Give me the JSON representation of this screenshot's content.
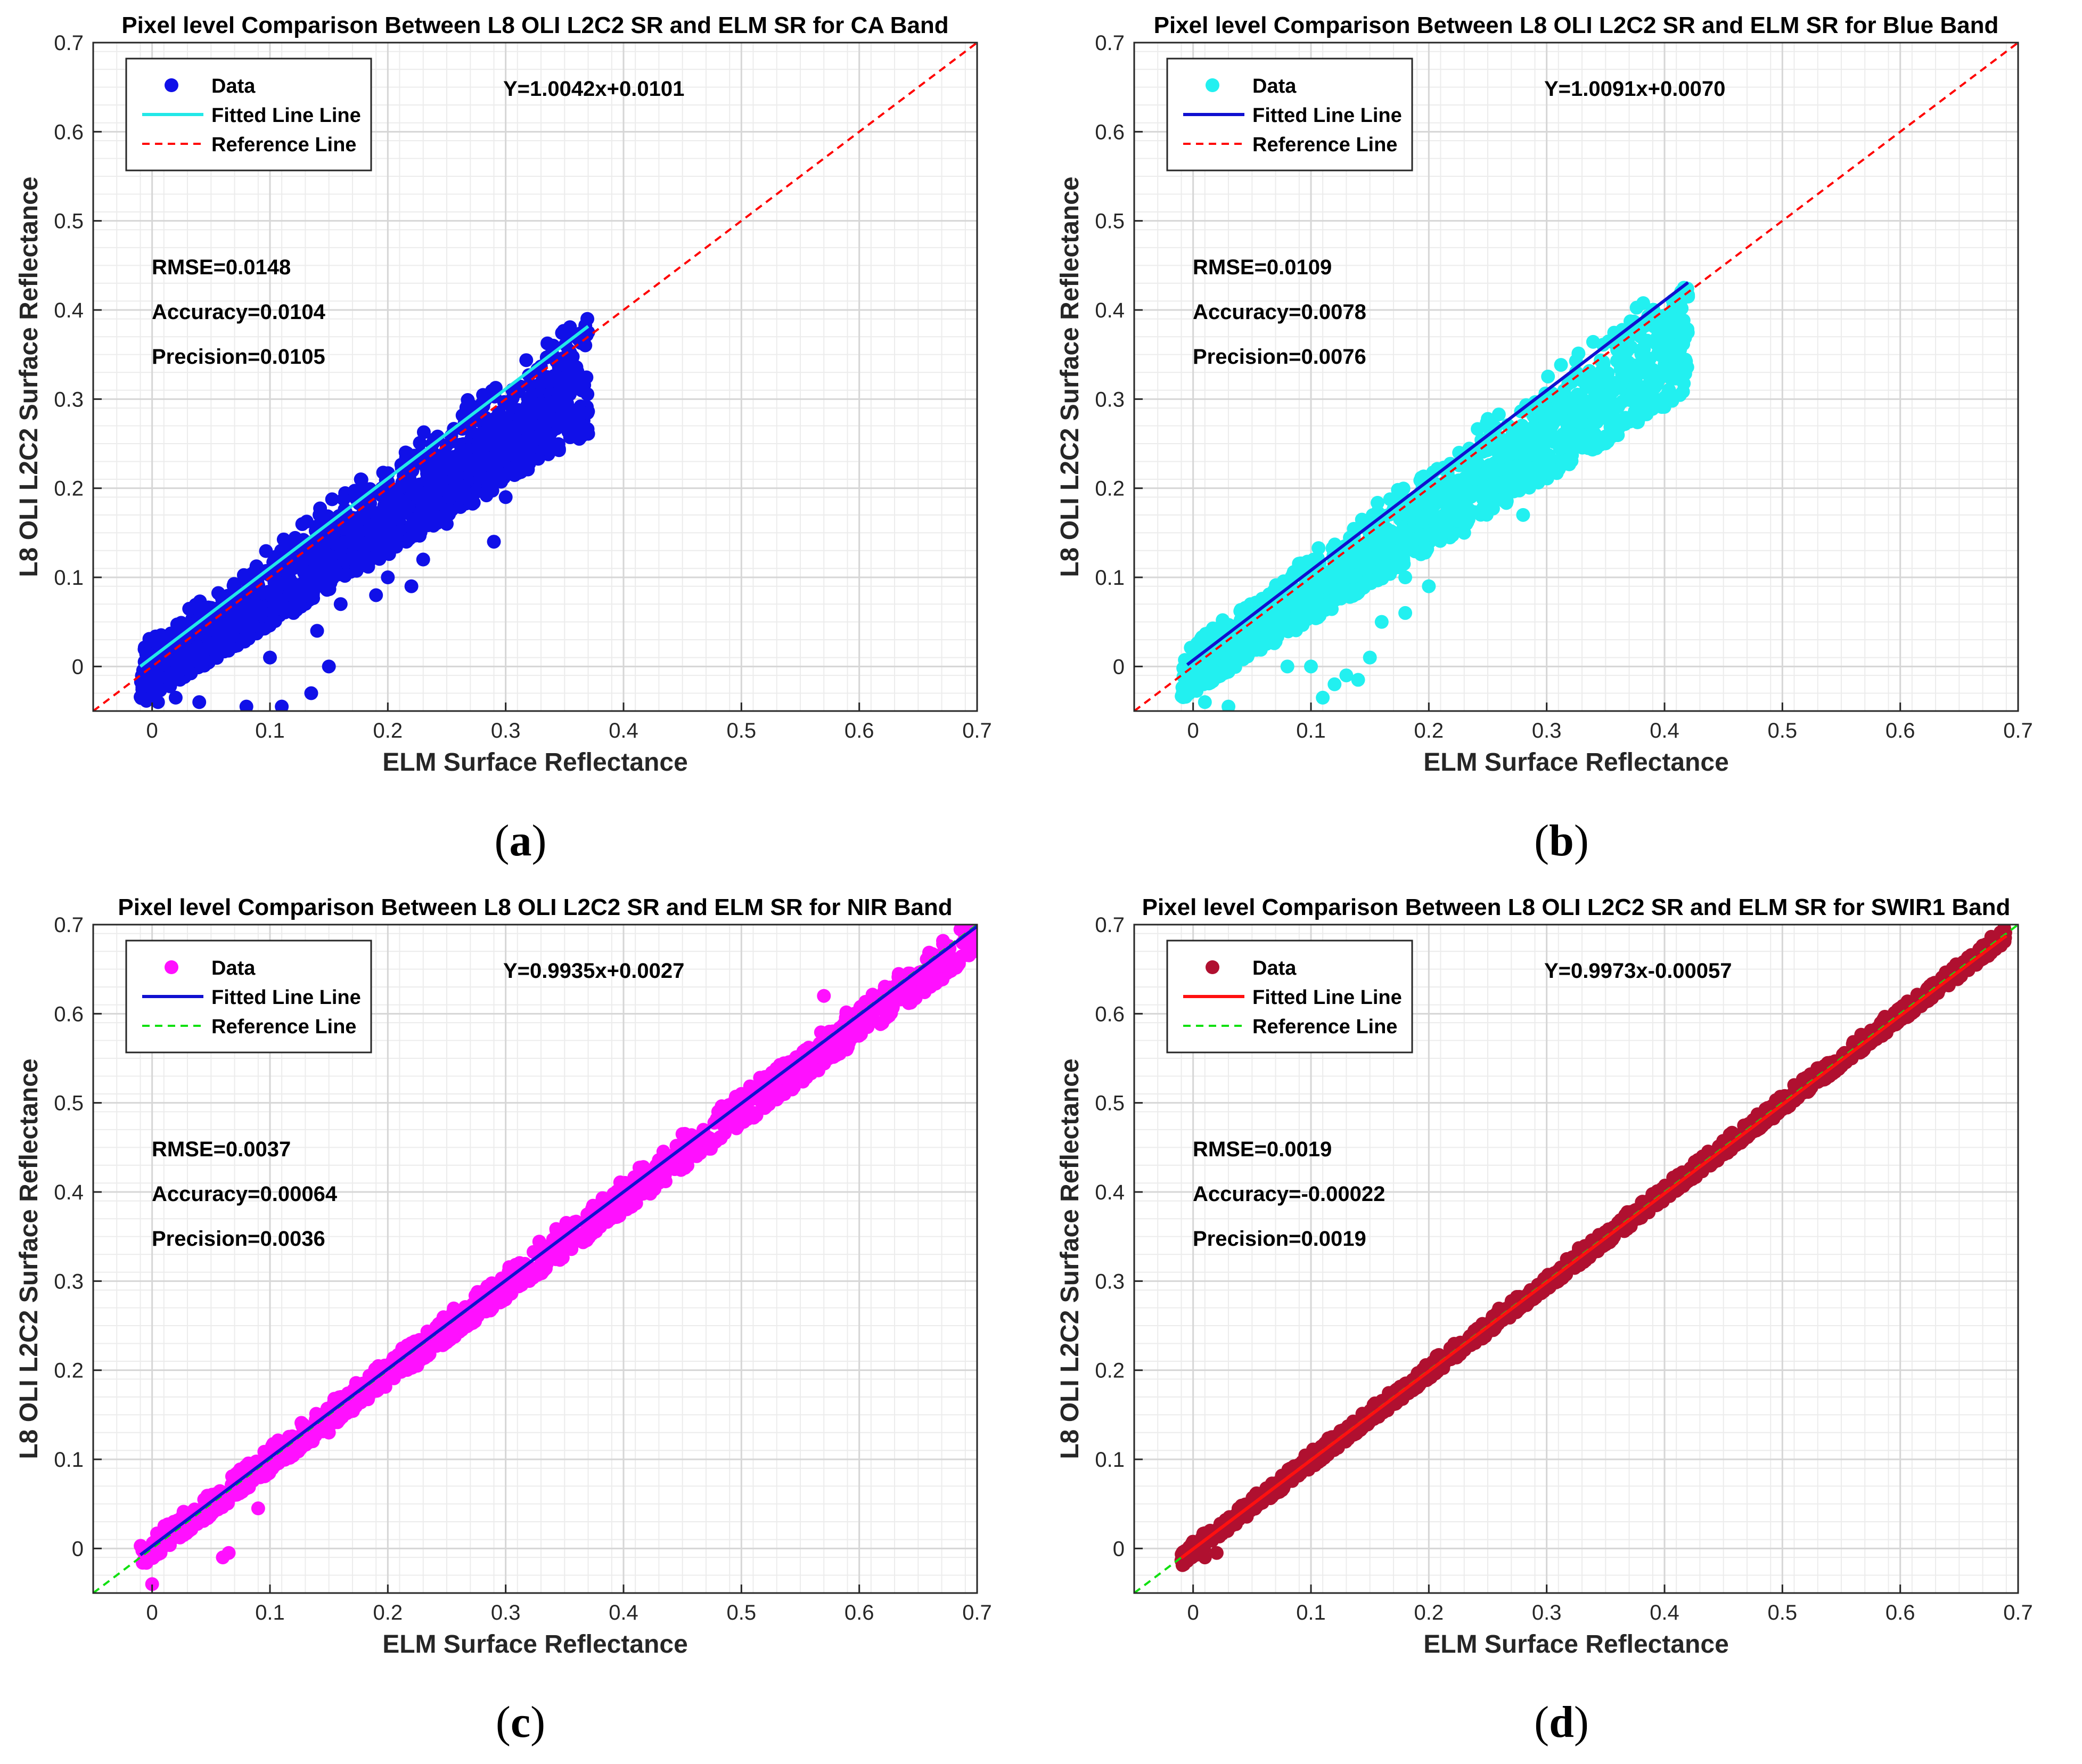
{
  "figure": {
    "panels": [
      {
        "letter": "a"
      },
      {
        "letter": "b"
      },
      {
        "letter": "c"
      },
      {
        "letter": "d"
      }
    ]
  },
  "chart_data": [
    {
      "type": "scatter",
      "title": "Pixel level Comparison Between L8 OLI L2C2 SR and ELM SR for CA Band",
      "xlabel": "ELM Surface Reflectance",
      "ylabel": "L8 OLI L2C2 Surface Reflectance",
      "xlim": [
        -0.05,
        0.7
      ],
      "ylim": [
        -0.05,
        0.7
      ],
      "xticks": [
        "0",
        "0.1",
        "0.2",
        "0.3",
        "0.4",
        "0.5",
        "0.6",
        "0.7"
      ],
      "yticks": [
        "0",
        "0.1",
        "0.2",
        "0.3",
        "0.4",
        "0.5",
        "0.6",
        "0.7"
      ],
      "grid": true,
      "legend_position": "top-left",
      "equation": "Y=1.0042x+0.0101",
      "stats": [
        "RMSE=0.0148",
        "Accuracy=0.0104",
        "Precision=0.0105"
      ],
      "series": [
        {
          "name": "Data",
          "kind": "points",
          "color": "#1010e8",
          "band": {
            "x_min": -0.01,
            "x_max": 0.37,
            "upper_offset": 0.035,
            "lower_slope": 0.8,
            "lower_offset": -0.035
          },
          "outliers": [
            [
              0.005,
              -0.04
            ],
            [
              0.02,
              -0.035
            ],
            [
              0.04,
              -0.04
            ],
            [
              0.08,
              -0.045
            ],
            [
              0.1,
              0.01
            ],
            [
              0.11,
              -0.045
            ],
            [
              0.135,
              -0.03
            ],
            [
              0.15,
              0.0
            ],
            [
              0.14,
              0.04
            ],
            [
              0.12,
              0.06
            ],
            [
              0.16,
              0.07
            ],
            [
              0.19,
              0.08
            ],
            [
              0.2,
              0.1
            ],
            [
              0.23,
              0.12
            ],
            [
              0.27,
              0.22
            ],
            [
              0.29,
              0.25
            ],
            [
              0.33,
              0.295
            ],
            [
              0.36,
              0.37
            ],
            [
              0.37,
              0.375
            ],
            [
              0.29,
              0.14
            ],
            [
              0.25,
              0.16
            ],
            [
              0.3,
              0.19
            ],
            [
              0.22,
              0.09
            ]
          ]
        },
        {
          "name": "Fitted Line Line",
          "kind": "line",
          "color": "#22e8e8",
          "slope": 1.0042,
          "intercept": 0.0101,
          "x_range": [
            -0.01,
            0.37
          ]
        },
        {
          "name": "Reference Line",
          "kind": "dashed",
          "color": "#ff0000",
          "slope": 1,
          "intercept": 0,
          "x_range": [
            -0.05,
            0.7
          ]
        }
      ]
    },
    {
      "type": "scatter",
      "title": "Pixel level Comparison Between L8 OLI L2C2 SR and ELM SR for Blue Band",
      "xlabel": "ELM Surface Reflectance",
      "ylabel": "L8 OLI L2C2 Surface Reflectance",
      "xlim": [
        -0.05,
        0.7
      ],
      "ylim": [
        -0.05,
        0.7
      ],
      "xticks": [
        "0",
        "0.1",
        "0.2",
        "0.3",
        "0.4",
        "0.5",
        "0.6",
        "0.7"
      ],
      "yticks": [
        "0",
        "0.1",
        "0.2",
        "0.3",
        "0.4",
        "0.5",
        "0.6",
        "0.7"
      ],
      "grid": true,
      "legend_position": "top-left",
      "equation": "Y=1.0091x+0.0070",
      "stats": [
        "RMSE=0.0109",
        "Accuracy=0.0078",
        "Precision=0.0076"
      ],
      "series": [
        {
          "name": "Data",
          "kind": "points",
          "color": "#22f0f0",
          "band": {
            "x_min": -0.01,
            "x_max": 0.42,
            "upper_offset": 0.03,
            "lower_slope": 0.8,
            "lower_offset": -0.03
          },
          "outliers": [
            [
              0.01,
              -0.04
            ],
            [
              0.03,
              -0.045
            ],
            [
              0.08,
              0.0
            ],
            [
              0.1,
              0.0
            ],
            [
              0.11,
              -0.035
            ],
            [
              0.12,
              -0.02
            ],
            [
              0.13,
              -0.01
            ],
            [
              0.14,
              -0.015
            ],
            [
              0.15,
              0.01
            ],
            [
              0.16,
              0.05
            ],
            [
              0.18,
              0.06
            ],
            [
              0.18,
              0.1
            ],
            [
              0.2,
              0.09
            ],
            [
              0.23,
              0.15
            ],
            [
              0.27,
              0.2
            ],
            [
              0.3,
              0.26
            ],
            [
              0.33,
              0.3
            ],
            [
              0.35,
              0.33
            ],
            [
              0.37,
              0.37
            ],
            [
              0.39,
              0.4
            ],
            [
              0.42,
              0.415
            ],
            [
              0.41,
              0.38
            ],
            [
              0.28,
              0.17
            ]
          ]
        },
        {
          "name": "Fitted Line Line",
          "kind": "line",
          "color": "#1010d0",
          "slope": 1.0091,
          "intercept": 0.007,
          "x_range": [
            -0.005,
            0.42
          ]
        },
        {
          "name": "Reference Line",
          "kind": "dashed",
          "color": "#ff0000",
          "slope": 1,
          "intercept": 0,
          "x_range": [
            -0.05,
            0.7
          ]
        }
      ]
    },
    {
      "type": "scatter",
      "title": "Pixel level Comparison Between L8 OLI L2C2 SR and ELM SR for NIR Band",
      "xlabel": "ELM Surface Reflectance",
      "ylabel": "L8 OLI L2C2 Surface Reflectance",
      "xlim": [
        -0.05,
        0.7
      ],
      "ylim": [
        -0.05,
        0.7
      ],
      "xticks": [
        "0",
        "0.1",
        "0.2",
        "0.3",
        "0.4",
        "0.5",
        "0.6",
        "0.7"
      ],
      "yticks": [
        "0",
        "0.1",
        "0.2",
        "0.3",
        "0.4",
        "0.5",
        "0.6",
        "0.7"
      ],
      "grid": true,
      "legend_position": "top-left",
      "equation": "Y=0.9935x+0.0027",
      "stats": [
        "RMSE=0.0037",
        "Accuracy=0.00064",
        "Precision=0.0036"
      ],
      "series": [
        {
          "name": "Data",
          "kind": "points",
          "color": "#ff10ff",
          "band": {
            "x_min": -0.01,
            "x_max": 0.7,
            "upper_offset": 0.016,
            "lower_slope": 0.97,
            "lower_offset": -0.012
          },
          "outliers": [
            [
              0.0,
              -0.04
            ],
            [
              0.06,
              -0.01
            ],
            [
              0.065,
              -0.005
            ],
            [
              0.09,
              0.045
            ],
            [
              0.15,
              0.13
            ],
            [
              0.225,
              0.205
            ],
            [
              0.5,
              0.51
            ],
            [
              0.57,
              0.62
            ],
            [
              0.45,
              0.465
            ],
            [
              0.3,
              0.3
            ]
          ]
        },
        {
          "name": "Fitted Line Line",
          "kind": "line",
          "color": "#1010d0",
          "slope": 0.9935,
          "intercept": 0.0027,
          "x_range": [
            -0.01,
            0.7
          ]
        },
        {
          "name": "Reference Line",
          "kind": "dashed",
          "color": "#10e010",
          "slope": 1,
          "intercept": 0,
          "x_range": [
            -0.05,
            0.7
          ]
        }
      ]
    },
    {
      "type": "scatter",
      "title": "Pixel level Comparison Between L8 OLI L2C2 SR and ELM SR for SWIR1 Band",
      "xlabel": "ELM Surface Reflectance",
      "ylabel": "L8 OLI L2C2 Surface Reflectance",
      "xlim": [
        -0.05,
        0.7
      ],
      "ylim": [
        -0.05,
        0.7
      ],
      "xticks": [
        "0",
        "0.1",
        "0.2",
        "0.3",
        "0.4",
        "0.5",
        "0.6",
        "0.7"
      ],
      "yticks": [
        "0",
        "0.1",
        "0.2",
        "0.3",
        "0.4",
        "0.5",
        "0.6",
        "0.7"
      ],
      "grid": true,
      "legend_position": "top-left",
      "equation": "Y=0.9973x-0.00057",
      "stats": [
        "RMSE=0.0019",
        "Accuracy=-0.00022",
        "Precision=0.0019"
      ],
      "series": [
        {
          "name": "Data",
          "kind": "points",
          "color": "#b01030",
          "band": {
            "x_min": -0.01,
            "x_max": 0.69,
            "upper_offset": 0.01,
            "lower_slope": 1.0,
            "lower_offset": -0.01
          },
          "outliers": [
            [
              0.01,
              -0.01
            ],
            [
              0.02,
              -0.005
            ],
            [
              0.51,
              0.52
            ]
          ]
        },
        {
          "name": "Fitted Line Line",
          "kind": "line",
          "color": "#ff1010",
          "slope": 0.9973,
          "intercept": -0.00057,
          "x_range": [
            -0.01,
            0.69
          ]
        },
        {
          "name": "Reference Line",
          "kind": "dashed",
          "color": "#10e010",
          "slope": 1,
          "intercept": 0,
          "x_range": [
            -0.05,
            0.7
          ]
        }
      ]
    }
  ]
}
